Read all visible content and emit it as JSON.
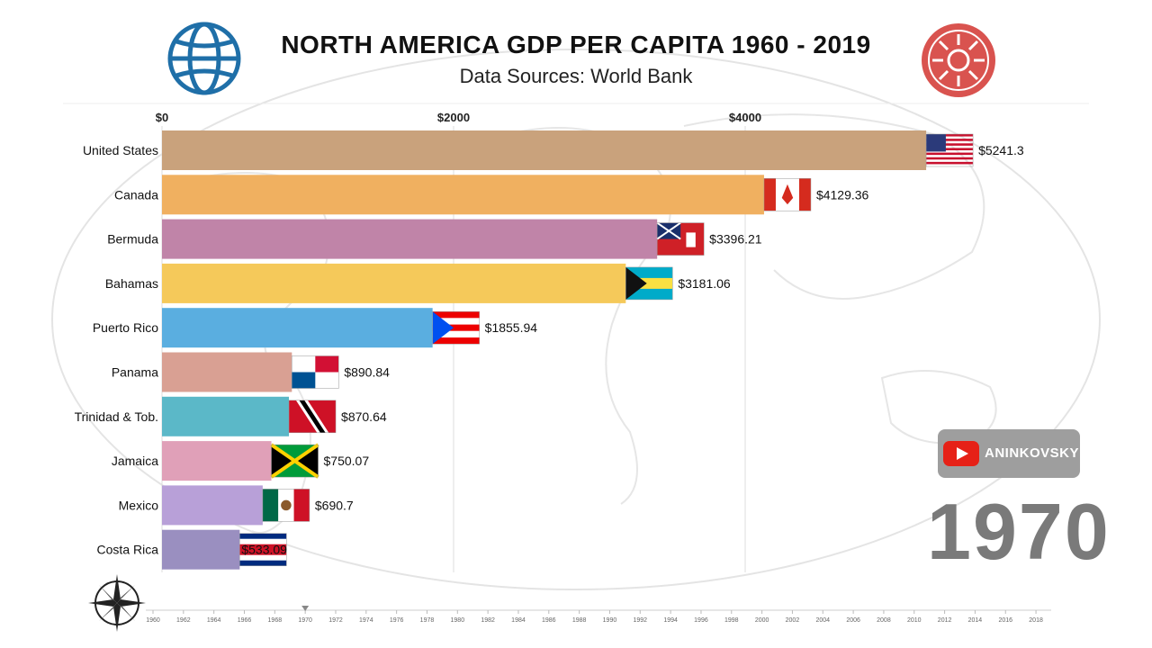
{
  "title": "NORTH AMERICA GDP PER CAPITA 1960 - 2019",
  "subtitle": "Data Sources: World Bank",
  "year": "1970",
  "youtube": {
    "name": "ANINKOVSKY"
  },
  "chart_data": {
    "type": "bar",
    "orientation": "horizontal",
    "title": "NORTH AMERICA GDP PER CAPITA 1960 - 2019",
    "subtitle": "Data Sources: World Bank",
    "xlim": [
      0,
      5300
    ],
    "x_ticks": [
      0,
      2000,
      4000
    ],
    "x_tick_labels": [
      "$0",
      "$2000",
      "$4000"
    ],
    "categories": [
      "United States",
      "Canada",
      "Bermuda",
      "Bahamas",
      "Puerto Rico",
      "Panama",
      "Trinidad & Tob.",
      "Jamaica",
      "Mexico",
      "Costa Rica"
    ],
    "values": [
      5241.3,
      4129.36,
      3396.21,
      3181.06,
      1855.94,
      890.84,
      870.64,
      750.07,
      690.7,
      533.09
    ],
    "value_labels": [
      "$5241.3",
      "$4129.36",
      "$3396.21",
      "$3181.06",
      "$1855.94",
      "$890.84",
      "$870.64",
      "$750.07",
      "$690.7",
      "$533.09"
    ],
    "colors": [
      "#c9a27c",
      "#f0b060",
      "#c084a8",
      "#f5c95a",
      "#5aaee0",
      "#d9a093",
      "#5bb8c8",
      "#e0a0b8",
      "#b8a0d8",
      "#9a8fc0"
    ],
    "flags": [
      "usa",
      "canada",
      "bermuda",
      "bahamas",
      "puerto-rico",
      "panama",
      "trinidad",
      "jamaica",
      "mexico",
      "costa-rica"
    ]
  },
  "timeline": {
    "labels": [
      "1960",
      "1962",
      "1964",
      "1966",
      "1968",
      "1970",
      "1972",
      "1974",
      "1976",
      "1978",
      "1980",
      "1982",
      "1984",
      "1986",
      "1988",
      "1990",
      "1992",
      "1994",
      "1996",
      "1998",
      "2000",
      "2002",
      "2004",
      "2006",
      "2008",
      "2010",
      "2012",
      "2014",
      "2016",
      "2018"
    ],
    "current": 1970,
    "start": 1960,
    "end": 2019
  },
  "icons": {
    "world_bank": "world-bank-logo-icon",
    "sun_logo": "sun-emblem-icon",
    "compass": "compass-rose-icon",
    "youtube": "youtube-icon"
  }
}
